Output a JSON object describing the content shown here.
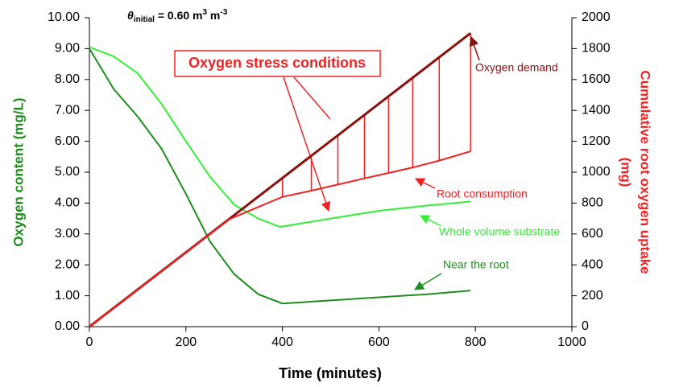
{
  "chart_data": {
    "type": "line",
    "subtitle": [
      "θ",
      "initial",
      " = 0.60 m",
      "3",
      " m",
      "-3"
    ],
    "annotation": "Oxygen stress conditions",
    "xlabel": "Time (minutes)",
    "ylabel": "Oxygen content (mg/L)",
    "y2label": [
      "Cumulative root oxygen uptake",
      "(mg)"
    ],
    "xlim": [
      0,
      1000
    ],
    "xticks": [
      0,
      200,
      400,
      600,
      800,
      1000
    ],
    "ylim": [
      0,
      10
    ],
    "yticks": [
      {
        "value": 0,
        "label": "0.00"
      },
      {
        "value": 1,
        "label": "1.00"
      },
      {
        "value": 2,
        "label": "2.00"
      },
      {
        "value": 3,
        "label": "3.00"
      },
      {
        "value": 4,
        "label": "4.00"
      },
      {
        "value": 5,
        "label": "5.00"
      },
      {
        "value": 6,
        "label": "6.00"
      },
      {
        "value": 7,
        "label": "7.00"
      },
      {
        "value": 8,
        "label": "8.00"
      },
      {
        "value": 9,
        "label": "9.00"
      },
      {
        "value": 10,
        "label": "10.00"
      }
    ],
    "y2lim": [
      0,
      2000
    ],
    "y2ticks": [
      0,
      200,
      400,
      600,
      800,
      1000,
      1200,
      1400,
      1600,
      1800,
      2000
    ],
    "series": [
      {
        "name": "Near the root",
        "color": "#1e8c1e",
        "x": [
          0,
          50,
          100,
          150,
          200,
          250,
          300,
          350,
          400,
          500,
          600,
          700,
          790
        ],
        "values": [
          9.0,
          7.7,
          6.8,
          5.75,
          4.3,
          2.75,
          1.7,
          1.05,
          0.75,
          0.85,
          0.95,
          1.05,
          1.17
        ]
      },
      {
        "name": "Whole volume substrate",
        "color": "#33ee33",
        "x": [
          0,
          50,
          100,
          150,
          200,
          250,
          300,
          350,
          395,
          500,
          600,
          700,
          790
        ],
        "values": [
          9.05,
          8.75,
          8.2,
          7.2,
          6.0,
          4.85,
          3.95,
          3.5,
          3.23,
          3.5,
          3.75,
          3.92,
          4.05
        ]
      },
      {
        "name": "Oxygen demand",
        "color": "#8b1010",
        "axis": "y2",
        "x": [
          0,
          790
        ],
        "values": [
          0,
          1900
        ]
      },
      {
        "name": "Root consumption",
        "color": "#ee2222",
        "axis": "y2",
        "x": [
          0,
          100,
          200,
          290,
          400,
          460,
          515,
          570,
          620,
          670,
          725,
          790
        ],
        "values": [
          0,
          240,
          480,
          696,
          840,
          880,
          920,
          960,
          995,
          1030,
          1075,
          1135
        ]
      }
    ]
  }
}
